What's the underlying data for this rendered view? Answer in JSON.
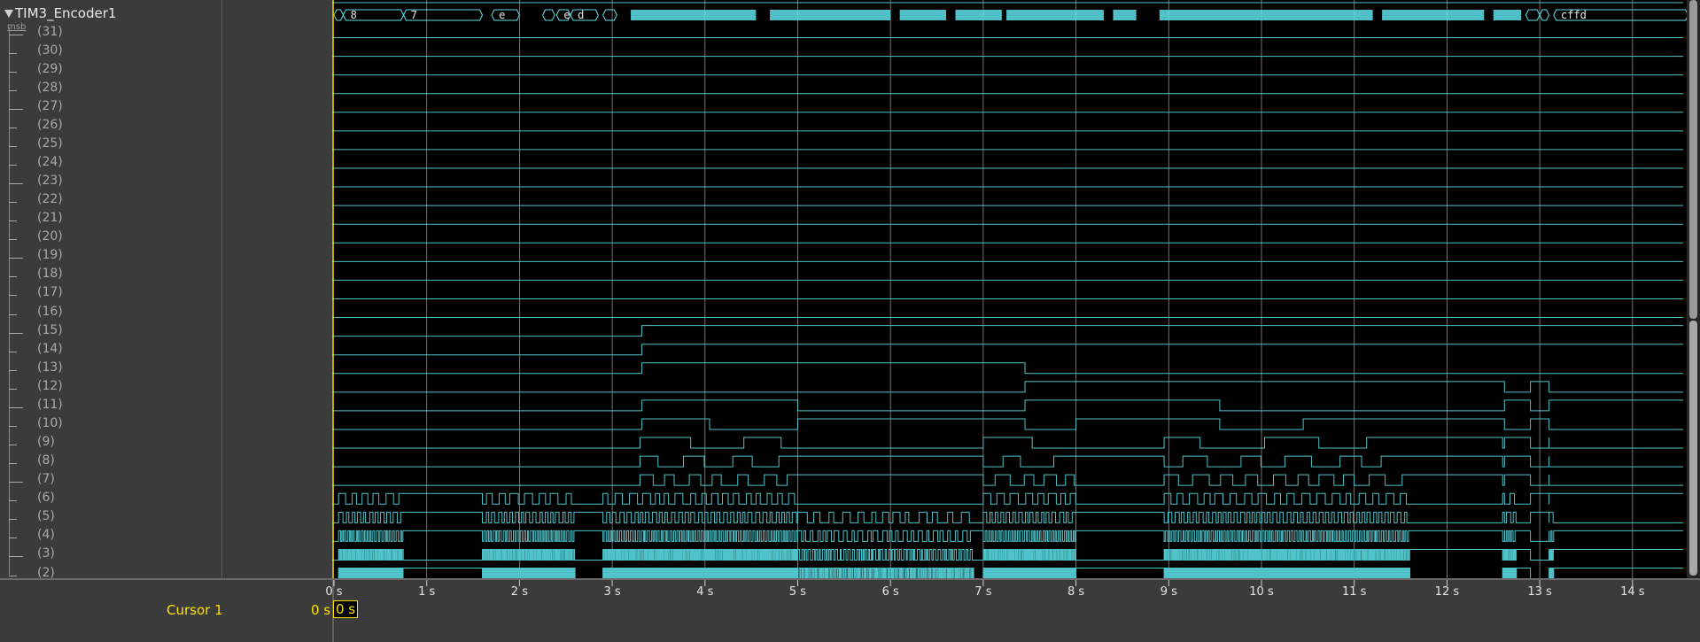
{
  "signal": {
    "collapse_icon": "triangle-down-icon",
    "name": "TIM3_Encoder1",
    "msb_label": "msb",
    "bits": [
      "(31)",
      "(30)",
      "(29)",
      "(28)",
      "(27)",
      "(26)",
      "(25)",
      "(24)",
      "(23)",
      "(22)",
      "(21)",
      "(20)",
      "(19)",
      "(18)",
      "(17)",
      "(16)",
      "(15)",
      "(14)",
      "(13)",
      "(12)",
      "(11)",
      "(10)",
      "(9)",
      "(8)",
      "(7)",
      "(6)",
      "(5)",
      "(4)",
      "(3)",
      "(2)"
    ],
    "bus_values": [
      "8",
      "7",
      "e",
      "e",
      "d",
      "cffd"
    ]
  },
  "time_axis": {
    "labels": [
      "0 s",
      "1 s",
      "2 s",
      "3 s",
      "4 s",
      "5 s",
      "6 s",
      "7 s",
      "8 s",
      "9 s",
      "10 s",
      "11 s",
      "12 s",
      "13 s",
      "14 s"
    ]
  },
  "cursor": {
    "label": "Cursor 1",
    "value": "0 s",
    "box_value": "0 s"
  },
  "colors": {
    "waveform": "#4fc3c9",
    "bus": "#5fe0ea",
    "cursor": "#ffe000",
    "grid": "#bfbfbf",
    "background": "#000000"
  },
  "chart_data": {
    "type": "line",
    "title": "",
    "xlabel": "",
    "ylabel": "",
    "x_unit": "s",
    "xlim": [
      0,
      14.6
    ],
    "cursor_time": 0
  }
}
